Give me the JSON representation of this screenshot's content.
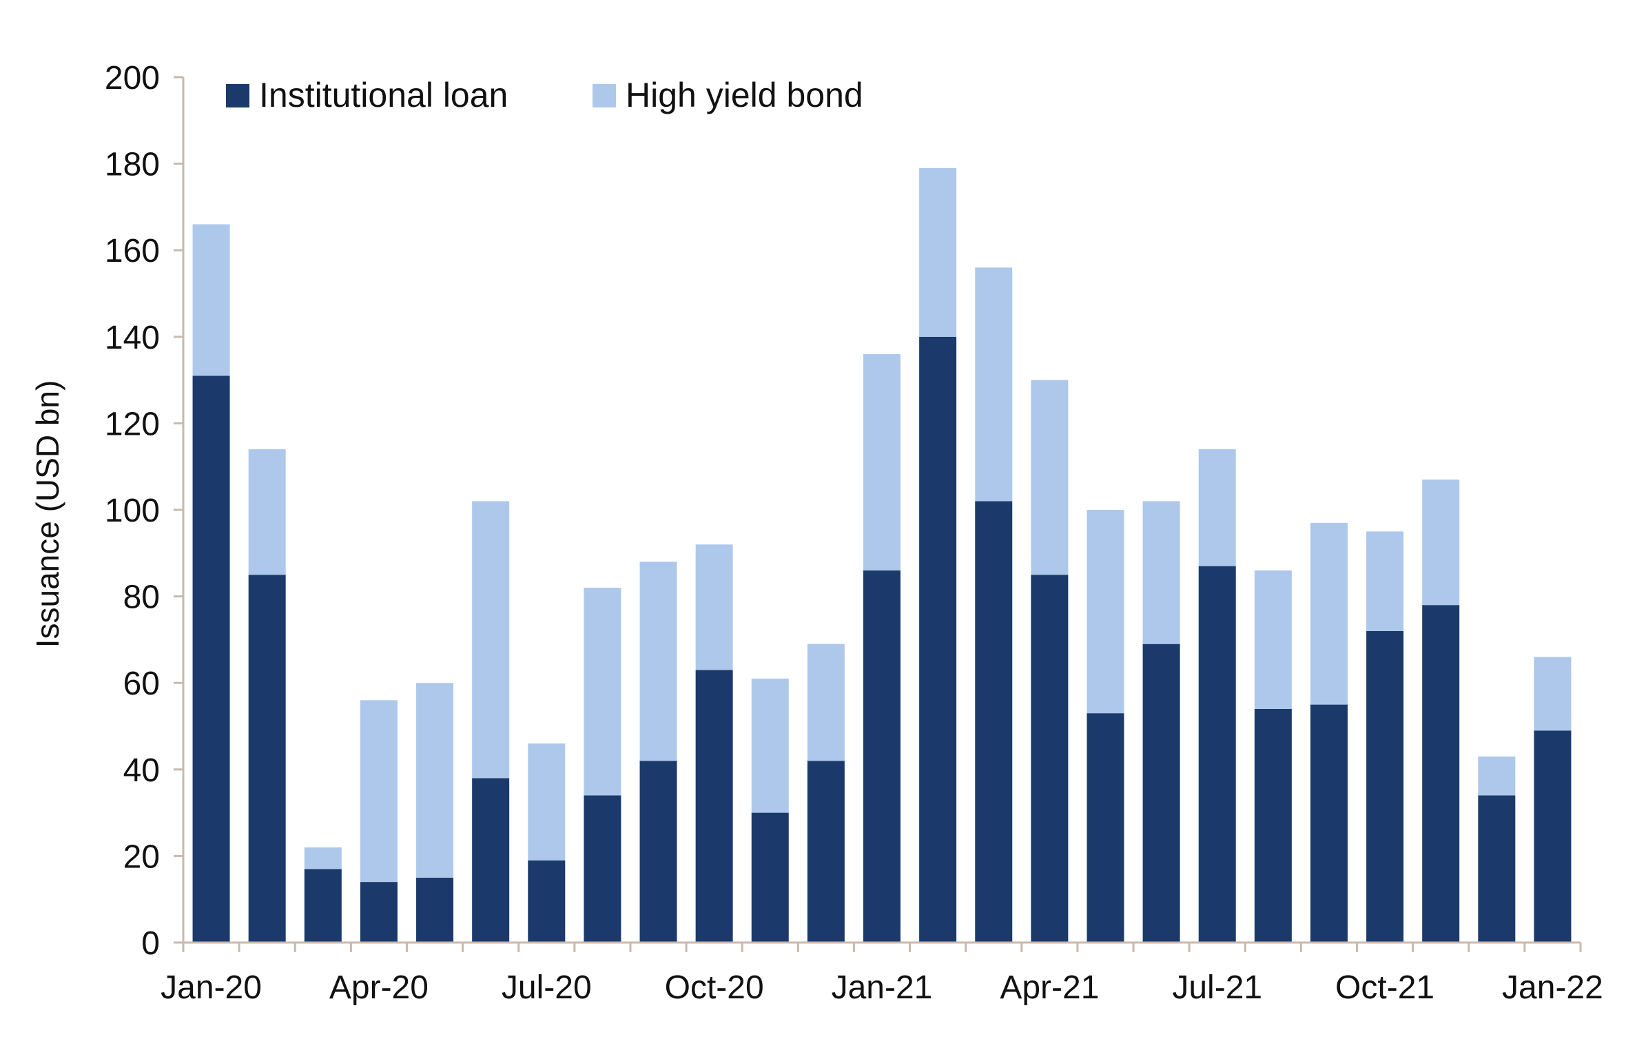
{
  "chart_data": {
    "type": "bar",
    "stacked": true,
    "title": "",
    "xlabel": "",
    "ylabel": "Issuance (USD bn)",
    "ylim": [
      0,
      200
    ],
    "yticks": [
      0,
      20,
      40,
      60,
      80,
      100,
      120,
      140,
      160,
      180,
      200
    ],
    "grid": false,
    "legend_position": "top",
    "categories": [
      "Jan-20",
      "Feb-20",
      "Mar-20",
      "Apr-20",
      "May-20",
      "Jun-20",
      "Jul-20",
      "Aug-20",
      "Sep-20",
      "Oct-20",
      "Nov-20",
      "Dec-20",
      "Jan-21",
      "Feb-21",
      "Mar-21",
      "Apr-21",
      "May-21",
      "Jun-21",
      "Jul-21",
      "Aug-21",
      "Sep-21",
      "Oct-21",
      "Nov-21",
      "Dec-21",
      "Jan-22"
    ],
    "xtick_labels": [
      "Jan-20",
      "Apr-20",
      "Jul-20",
      "Oct-20",
      "Jan-21",
      "Apr-21",
      "Jul-21",
      "Oct-21",
      "Jan-22"
    ],
    "series": [
      {
        "name": "Institutional loan",
        "color": "#1b3a6b",
        "values": [
          131,
          85,
          17,
          14,
          15,
          38,
          19,
          34,
          42,
          63,
          30,
          42,
          86,
          140,
          102,
          85,
          53,
          69,
          87,
          54,
          55,
          72,
          78,
          34,
          49
        ]
      },
      {
        "name": "High yield bond",
        "color": "#aec8ec",
        "values": [
          35,
          29,
          5,
          42,
          45,
          64,
          27,
          48,
          46,
          29,
          31,
          27,
          50,
          39,
          54,
          45,
          47,
          33,
          27,
          32,
          42,
          23,
          29,
          9,
          17
        ]
      }
    ]
  }
}
